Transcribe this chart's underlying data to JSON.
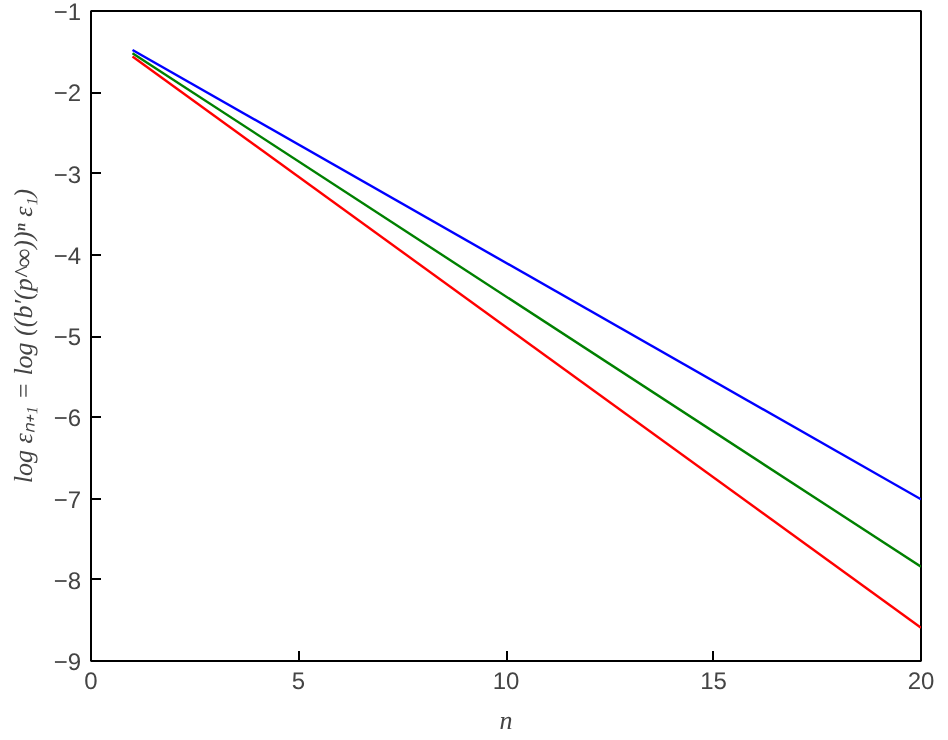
{
  "chart_data": {
    "type": "line",
    "xlabel": "n",
    "ylabel": "log εₙ₊₁ = log ((b′(p^∞))ⁿ ε₁)",
    "x": [
      1,
      20
    ],
    "series": [
      {
        "color": "#0000ff",
        "values": [
          -1.48,
          -7.01
        ]
      },
      {
        "color": "#008000",
        "values": [
          -1.52,
          -7.84
        ]
      },
      {
        "color": "#ff0000",
        "values": [
          -1.56,
          -8.59
        ]
      }
    ],
    "xlim": [
      0,
      20
    ],
    "ylim": [
      -9,
      -1
    ],
    "xticks": [
      0,
      5,
      10,
      15,
      20
    ],
    "yticks": [
      -9,
      -8,
      -7,
      -6,
      -5,
      -4,
      -3,
      -2,
      -1
    ],
    "grid": false,
    "line_style": "solid"
  }
}
